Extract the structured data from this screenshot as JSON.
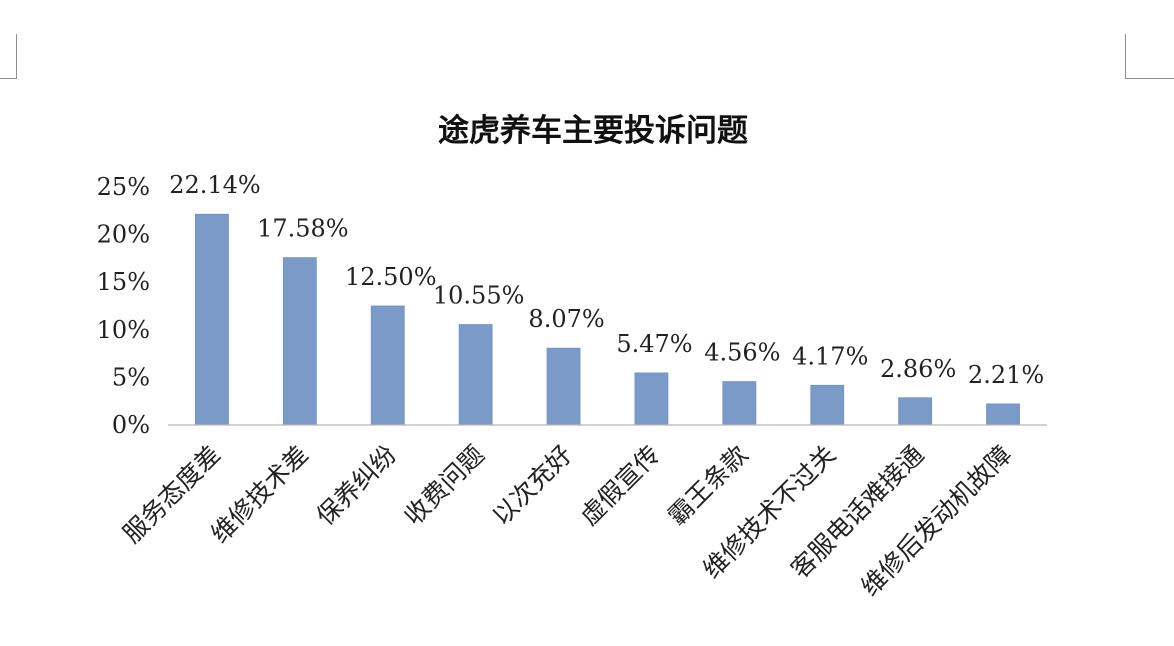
{
  "chart_data": {
    "type": "bar",
    "title": "途虎养车主要投诉问题",
    "categories": [
      "服务态度差",
      "维修技术差",
      "保养纠纷",
      "收费问题",
      "以次充好",
      "虚假宣传",
      "霸王条款",
      "维修技术不过关",
      "客服电话难接通",
      "维修后发动机故障"
    ],
    "values": [
      22.14,
      17.58,
      12.5,
      10.55,
      8.07,
      5.47,
      4.56,
      4.17,
      2.86,
      2.21
    ],
    "data_labels": [
      "22.14%",
      "17.58%",
      "12.50%",
      "10.55%",
      "8.07%",
      "5.47%",
      "4.56%",
      "4.17%",
      "2.86%",
      "2.21%"
    ],
    "yticks": [
      0,
      5,
      10,
      15,
      20,
      25
    ],
    "ytick_labels": [
      "0%",
      "5%",
      "10%",
      "15%",
      "20%",
      "25%"
    ],
    "ylim": [
      0,
      25
    ],
    "xlabel": "",
    "ylabel": "",
    "grid": false,
    "legend": "none",
    "colors": {
      "bar": "#7b9ac8",
      "axis": "#b8b8b8",
      "text": "#222222"
    }
  }
}
